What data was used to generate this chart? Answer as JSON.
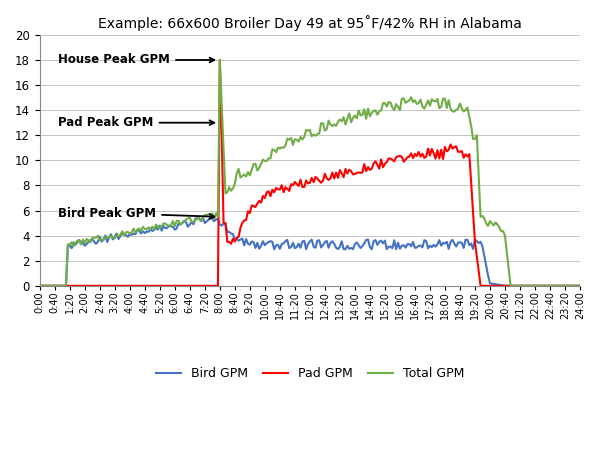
{
  "title": "Example: 66x600 Broiler Day 49 at 95˚F/42% RH in Alabama",
  "ylim": [
    0,
    20
  ],
  "yticks": [
    0,
    2,
    4,
    6,
    8,
    10,
    12,
    14,
    16,
    18,
    20
  ],
  "bird_color": "#4472C4",
  "pad_color": "#FF0000",
  "total_color": "#70AD47",
  "legend_labels": [
    "Bird GPM",
    "Pad GPM",
    "Total GPM"
  ],
  "figsize": [
    6.0,
    4.62
  ],
  "dpi": 100
}
